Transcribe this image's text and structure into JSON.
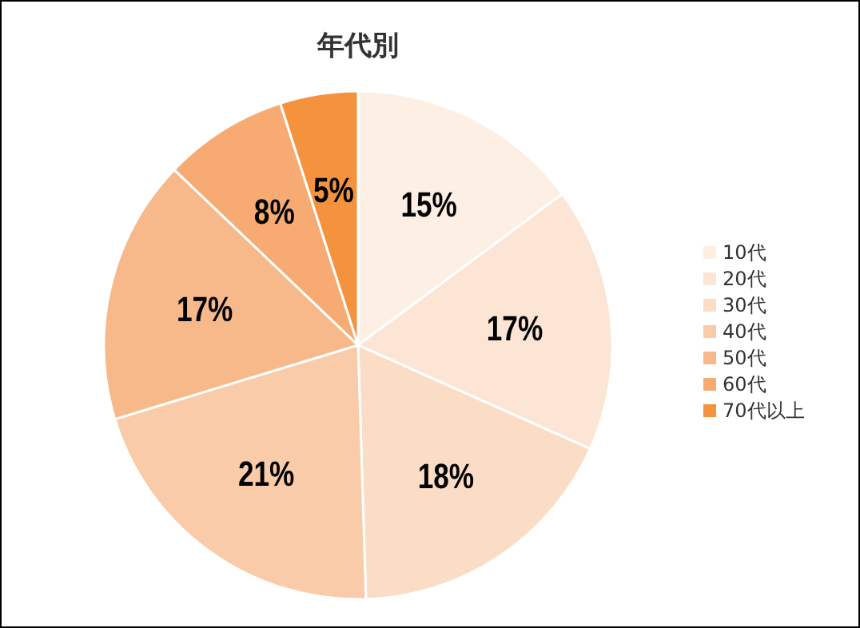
{
  "chart_data": {
    "type": "pie",
    "title": "年代別",
    "categories": [
      "10代",
      "20代",
      "30代",
      "40代",
      "50代",
      "60代",
      "70代以上"
    ],
    "values": [
      15,
      17,
      18,
      21,
      17,
      8,
      5
    ],
    "value_labels": [
      "15%",
      "17%",
      "18%",
      "21%",
      "17%",
      "8%",
      "5%"
    ],
    "colors": [
      "#fdefe3",
      "#fce5d4",
      "#fbdcc5",
      "#f9cba8",
      "#f8b98a",
      "#f7ab72",
      "#f4923e"
    ],
    "legend": "right"
  }
}
